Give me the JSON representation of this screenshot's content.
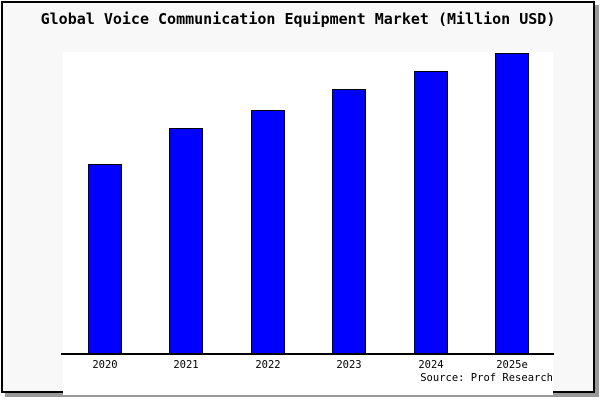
{
  "window": {
    "background": "#f8f8f8",
    "plot_background": "#ffffff",
    "border_color": "#000000",
    "shadow_color": "#999999"
  },
  "title": "Global Voice Communication Equipment Market (Million USD)",
  "source_note": "Source: Prof Research",
  "chart_data": {
    "type": "bar",
    "title": "Global Voice Communication Equipment Market (Million USD)",
    "categories": [
      "2020",
      "2021",
      "2022",
      "2023",
      "2024",
      "2025e"
    ],
    "values": [
      0.63,
      0.75,
      0.81,
      0.88,
      0.94,
      1.0
    ],
    "values_note": "relative bar heights (fraction of tallest bar); no y-axis scale, ticks or gridlines are shown in the chart",
    "xlabel": "",
    "ylabel": "",
    "ylim": [
      0,
      1.0
    ],
    "gridlines": false,
    "legend": false,
    "y_axis_visible": false,
    "bar_fill": "#0000ff",
    "bar_border": "#000000",
    "annotation": "Source: Prof Research"
  }
}
